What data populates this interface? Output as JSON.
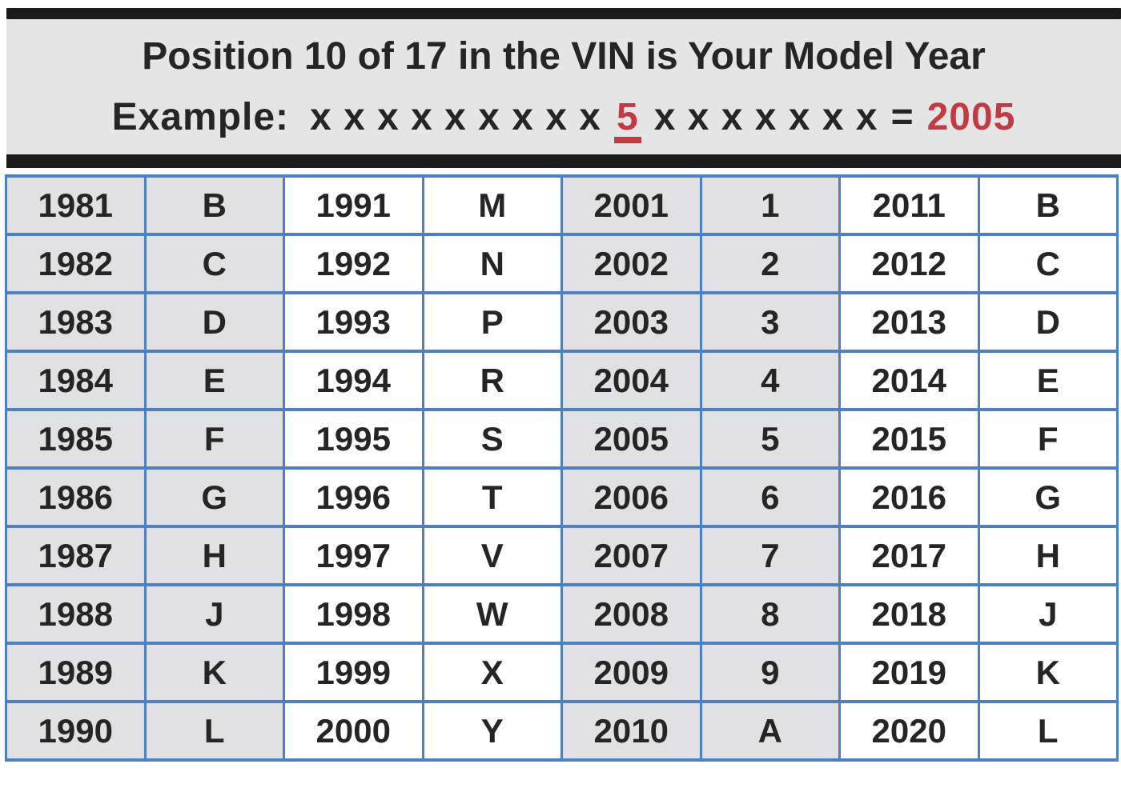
{
  "header": {
    "title": "Position 10 of 17 in the VIN is Your Model Year",
    "example": {
      "label": "Example:",
      "before_xs": "x x x x x x x x x",
      "position_char": "5",
      "after_xs": "x x x x x x x",
      "equals": "=",
      "result": "2005"
    }
  },
  "colors": {
    "table_border_blue": "#4d7fc3",
    "highlight_red": "#c23b42",
    "shaded_cell_gray": "#e1e1e4",
    "plain_cell_white": "#fefefe",
    "header_band_gray": "#e5e5e5",
    "bar_black": "#1b1b1b"
  },
  "table": {
    "pair_pattern": [
      "year",
      "code"
    ],
    "shaded_pair_indexes": [
      0,
      2
    ],
    "rows": [
      [
        {
          "year": "1981",
          "code": "B"
        },
        {
          "year": "1991",
          "code": "M"
        },
        {
          "year": "2001",
          "code": "1"
        },
        {
          "year": "2011",
          "code": "B"
        }
      ],
      [
        {
          "year": "1982",
          "code": "C"
        },
        {
          "year": "1992",
          "code": "N"
        },
        {
          "year": "2002",
          "code": "2"
        },
        {
          "year": "2012",
          "code": "C"
        }
      ],
      [
        {
          "year": "1983",
          "code": "D"
        },
        {
          "year": "1993",
          "code": "P"
        },
        {
          "year": "2003",
          "code": "3"
        },
        {
          "year": "2013",
          "code": "D"
        }
      ],
      [
        {
          "year": "1984",
          "code": "E"
        },
        {
          "year": "1994",
          "code": "R"
        },
        {
          "year": "2004",
          "code": "4"
        },
        {
          "year": "2014",
          "code": "E"
        }
      ],
      [
        {
          "year": "1985",
          "code": "F"
        },
        {
          "year": "1995",
          "code": "S"
        },
        {
          "year": "2005",
          "code": "5"
        },
        {
          "year": "2015",
          "code": "F"
        }
      ],
      [
        {
          "year": "1986",
          "code": "G"
        },
        {
          "year": "1996",
          "code": "T"
        },
        {
          "year": "2006",
          "code": "6"
        },
        {
          "year": "2016",
          "code": "G"
        }
      ],
      [
        {
          "year": "1987",
          "code": "H"
        },
        {
          "year": "1997",
          "code": "V"
        },
        {
          "year": "2007",
          "code": "7"
        },
        {
          "year": "2017",
          "code": "H"
        }
      ],
      [
        {
          "year": "1988",
          "code": "J"
        },
        {
          "year": "1998",
          "code": "W"
        },
        {
          "year": "2008",
          "code": "8"
        },
        {
          "year": "2018",
          "code": "J"
        }
      ],
      [
        {
          "year": "1989",
          "code": "K"
        },
        {
          "year": "1999",
          "code": "X"
        },
        {
          "year": "2009",
          "code": "9"
        },
        {
          "year": "2019",
          "code": "K"
        }
      ],
      [
        {
          "year": "1990",
          "code": "L"
        },
        {
          "year": "2000",
          "code": "Y"
        },
        {
          "year": "2010",
          "code": "A"
        },
        {
          "year": "2020",
          "code": "L"
        }
      ]
    ]
  }
}
